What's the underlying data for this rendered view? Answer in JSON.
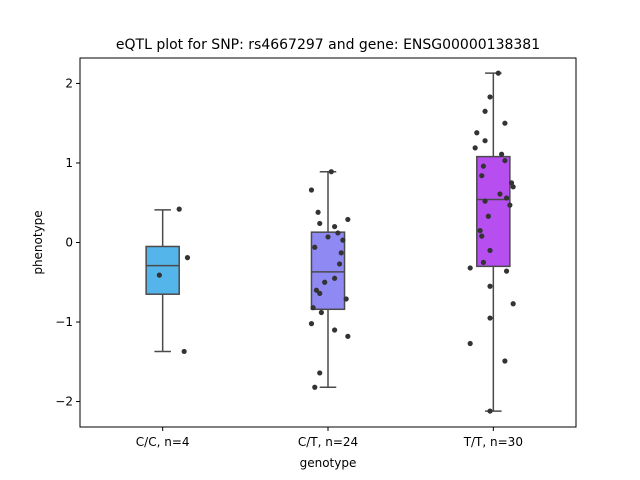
{
  "chart_data": {
    "type": "box",
    "title": "eQTL plot for SNP: rs4667297 and gene: ENSG00000138381",
    "xlabel": "genotype",
    "ylabel": "phenotype",
    "ylim": [
      -2.32,
      2.32
    ],
    "yticks": [
      -2,
      -1,
      0,
      1,
      2
    ],
    "ytick_labels": [
      "−2",
      "−1",
      "0",
      "1",
      "2"
    ],
    "grid": false,
    "categories": [
      "C/C, n=4",
      "C/T, n=24",
      "T/T, n=30"
    ],
    "colors": [
      "#53b5ea",
      "#8f89f4",
      "#b74ff0"
    ],
    "boxes": [
      {
        "whislo": -1.37,
        "q1": -0.65,
        "med": -0.29,
        "q3": -0.05,
        "whishi": 0.41
      },
      {
        "whislo": -1.82,
        "q1": -0.84,
        "med": -0.37,
        "q3": 0.13,
        "whishi": 0.89
      },
      {
        "whislo": -2.12,
        "q1": -0.3,
        "med": 0.54,
        "q3": 1.08,
        "whishi": 2.13
      }
    ],
    "points": [
      [
        [
          0.1,
          0.42
        ],
        [
          0.15,
          -0.19
        ],
        [
          -0.02,
          -0.41
        ],
        [
          0.13,
          -1.37
        ]
      ],
      [
        [
          0.02,
          0.89
        ],
        [
          -0.1,
          0.66
        ],
        [
          -0.06,
          0.38
        ],
        [
          0.12,
          0.29
        ],
        [
          -0.05,
          0.24
        ],
        [
          0.04,
          0.2
        ],
        [
          0.09,
          0.03
        ],
        [
          0.06,
          0.12
        ],
        [
          0.0,
          0.07
        ],
        [
          -0.08,
          -0.06
        ],
        [
          0.08,
          -0.13
        ],
        [
          0.07,
          -0.27
        ],
        [
          0.04,
          -0.45
        ],
        [
          -0.02,
          -0.5
        ],
        [
          -0.07,
          -0.6
        ],
        [
          -0.05,
          -0.64
        ],
        [
          0.11,
          -0.71
        ],
        [
          -0.09,
          -0.82
        ],
        [
          -0.04,
          -0.88
        ],
        [
          -0.1,
          -1.02
        ],
        [
          0.04,
          -1.1
        ],
        [
          0.12,
          -1.18
        ],
        [
          -0.05,
          -1.64
        ],
        [
          -0.08,
          -1.82
        ]
      ],
      [
        [
          0.03,
          2.13
        ],
        [
          -0.02,
          1.83
        ],
        [
          -0.05,
          1.65
        ],
        [
          0.07,
          1.5
        ],
        [
          -0.1,
          1.38
        ],
        [
          -0.05,
          1.28
        ],
        [
          -0.11,
          1.19
        ],
        [
          0.05,
          1.11
        ],
        [
          0.07,
          1.03
        ],
        [
          -0.06,
          0.96
        ],
        [
          -0.07,
          0.84
        ],
        [
          0.11,
          0.75
        ],
        [
          0.12,
          0.7
        ],
        [
          0.04,
          0.61
        ],
        [
          0.08,
          0.56
        ],
        [
          -0.05,
          0.52
        ],
        [
          0.1,
          0.47
        ],
        [
          -0.03,
          0.33
        ],
        [
          -0.08,
          0.15
        ],
        [
          -0.07,
          0.08
        ],
        [
          -0.02,
          -0.1
        ],
        [
          -0.06,
          -0.25
        ],
        [
          -0.14,
          -0.32
        ],
        [
          0.08,
          -0.36
        ],
        [
          -0.02,
          -0.55
        ],
        [
          0.12,
          -0.77
        ],
        [
          -0.02,
          -0.95
        ],
        [
          -0.14,
          -1.27
        ],
        [
          0.07,
          -1.49
        ],
        [
          -0.02,
          -2.12
        ]
      ]
    ]
  }
}
